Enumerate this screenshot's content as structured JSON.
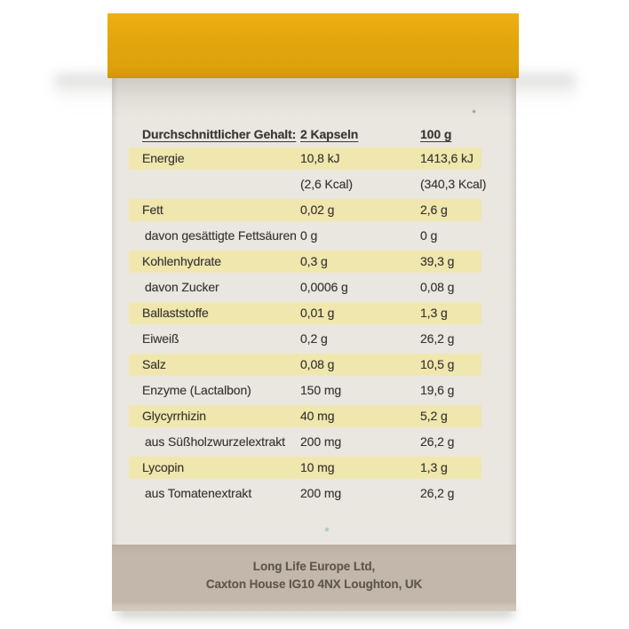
{
  "table": {
    "header": {
      "col1": "Durchschnittlicher Gehalt:",
      "col2": "2 Kapseln",
      "col3": "100 g"
    },
    "rows": [
      {
        "label": "Energie",
        "per2": "10,8 kJ",
        "per100": "1413,6 kJ",
        "highlight": true,
        "sub": false
      },
      {
        "label": "",
        "per2": "(2,6 Kcal)",
        "per100": "(340,3 Kcal)",
        "highlight": false,
        "sub": false
      },
      {
        "label": "Fett",
        "per2": "0,02 g",
        "per100": "2,6 g",
        "highlight": true,
        "sub": false
      },
      {
        "label": "davon gesättigte Fettsäuren",
        "per2": "0 g",
        "per100": "0 g",
        "highlight": false,
        "sub": true
      },
      {
        "label": "Kohlenhydrate",
        "per2": "0,3 g",
        "per100": "39,3 g",
        "highlight": true,
        "sub": false
      },
      {
        "label": "davon Zucker",
        "per2": "0,0006 g",
        "per100": "0,08 g",
        "highlight": false,
        "sub": true
      },
      {
        "label": "Ballaststoffe",
        "per2": "0,01 g",
        "per100": "1,3 g",
        "highlight": true,
        "sub": false
      },
      {
        "label": "Eiweiß",
        "per2": "0,2 g",
        "per100": "26,2 g",
        "highlight": false,
        "sub": false
      },
      {
        "label": "Salz",
        "per2": "0,08 g",
        "per100": "10,5 g",
        "highlight": true,
        "sub": false
      },
      {
        "label": "Enzyme (Lactalbon)",
        "per2": "150 mg",
        "per100": "19,6 g",
        "highlight": false,
        "sub": false
      },
      {
        "label": "Glycyrrhizin",
        "per2": "40 mg",
        "per100": "5,2 g",
        "highlight": true,
        "sub": false
      },
      {
        "label": "aus Süßholzwurzelextrakt",
        "per2": "200 mg",
        "per100": "26,2 g",
        "highlight": false,
        "sub": true
      },
      {
        "label": "Lycopin",
        "per2": "10 mg",
        "per100": "1,3 g",
        "highlight": true,
        "sub": false
      },
      {
        "label": "aus Tomatenextrakt",
        "per2": "200 mg",
        "per100": "26,2 g",
        "highlight": false,
        "sub": true
      }
    ]
  },
  "footer": {
    "line1": "Long Life Europe Ltd,",
    "line2": "Caxton House IG10 4NX Loughton, UK"
  },
  "colors": {
    "lid_yellow": "#e3a60d",
    "row_highlight": "#f0e7ae",
    "box_face": "#eae7e1",
    "footer_band": "#c2b7aa",
    "table_text": "#3c3833",
    "footer_text": "#60574b"
  }
}
